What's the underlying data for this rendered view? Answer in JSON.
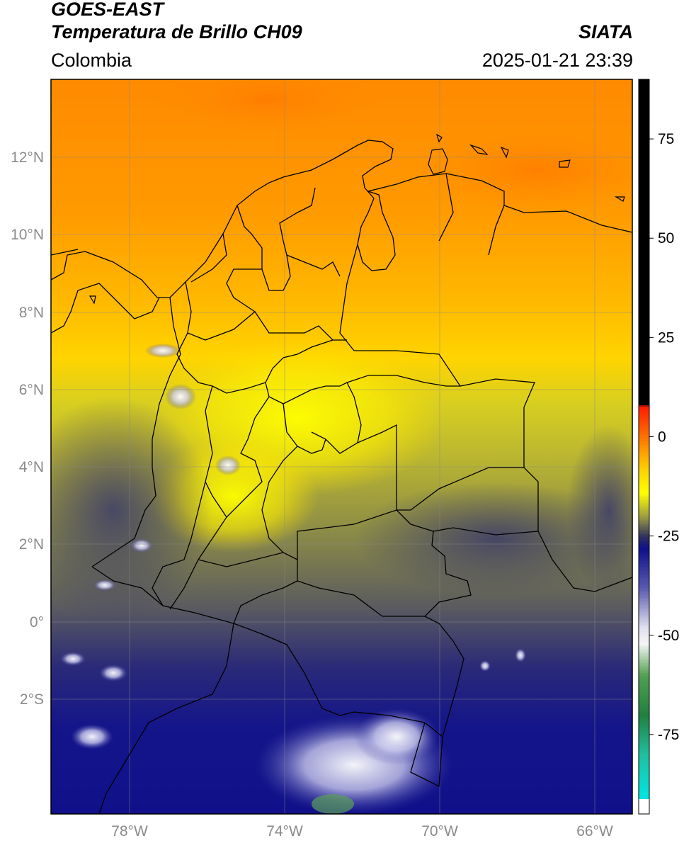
{
  "header": {
    "satellite": "GOES-EAST",
    "product": "Temperatura de Brillo CH09",
    "org": "SIATA",
    "region": "Colombia",
    "datetime": "2025-01-21 23:39"
  },
  "map": {
    "lat_ticks": [
      "12°N",
      "10°N",
      "8°N",
      "6°N",
      "4°N",
      "2°N",
      "0°",
      "2°S"
    ],
    "lon_ticks": [
      "78°W",
      "74°W",
      "70°W",
      "66°W"
    ],
    "lat_range": [
      -5.2,
      14.0
    ],
    "lon_range": [
      -79.8,
      -64.8
    ]
  },
  "colorbar": {
    "ticks": [
      "75",
      "50",
      "25",
      "0",
      "-25",
      "-50",
      "-75"
    ],
    "tick_values": [
      75,
      50,
      25,
      0,
      -25,
      -50,
      -75
    ],
    "range": [
      -95,
      90
    ],
    "stops": [
      {
        "v": 90,
        "c": "#000000"
      },
      {
        "v": 8,
        "c": "#000000"
      },
      {
        "v": 7.9,
        "c": "#ff1a00"
      },
      {
        "v": -2,
        "c": "#ff8a00"
      },
      {
        "v": -8,
        "c": "#ffd000"
      },
      {
        "v": -14,
        "c": "#ffff00"
      },
      {
        "v": -20,
        "c": "#9c9c40"
      },
      {
        "v": -25,
        "c": "#303060"
      },
      {
        "v": -28,
        "c": "#10108a"
      },
      {
        "v": -38,
        "c": "#5a5ab0"
      },
      {
        "v": -48,
        "c": "#e0e0f0"
      },
      {
        "v": -52,
        "c": "#f5f5f5"
      },
      {
        "v": -60,
        "c": "#50a050"
      },
      {
        "v": -70,
        "c": "#208040"
      },
      {
        "v": -80,
        "c": "#20c0a0"
      },
      {
        "v": -91,
        "c": "#00e5e5"
      },
      {
        "v": -91.1,
        "c": "#ffffff"
      },
      {
        "v": -95,
        "c": "#ffffff"
      }
    ]
  }
}
